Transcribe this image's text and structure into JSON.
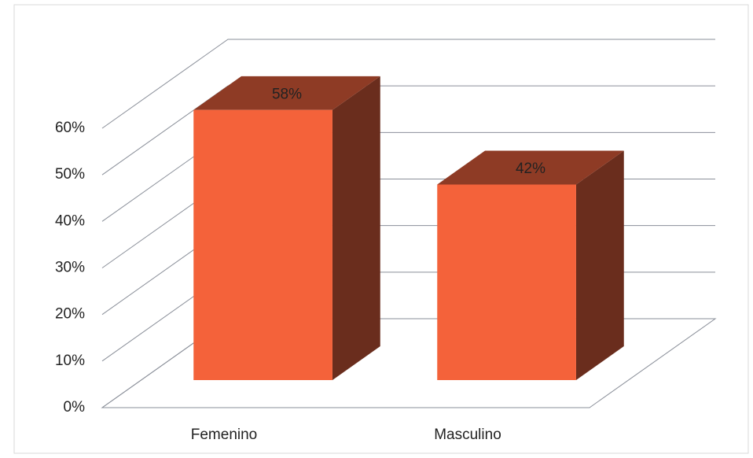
{
  "chart_data": {
    "type": "bar3d",
    "categories": [
      "Femenino",
      "Masculino"
    ],
    "values": [
      58,
      42
    ],
    "value_labels": [
      "58%",
      "42%"
    ],
    "color": "#f4623a",
    "ylim": [
      0,
      60
    ],
    "yticks": [
      {
        "value": 0,
        "label": "0%"
      },
      {
        "value": 10,
        "label": "10%"
      },
      {
        "value": 20,
        "label": "20%"
      },
      {
        "value": 30,
        "label": "30%"
      },
      {
        "value": 40,
        "label": "40%"
      },
      {
        "value": 50,
        "label": "50%"
      },
      {
        "value": 60,
        "label": "60%"
      }
    ],
    "grid": true
  }
}
